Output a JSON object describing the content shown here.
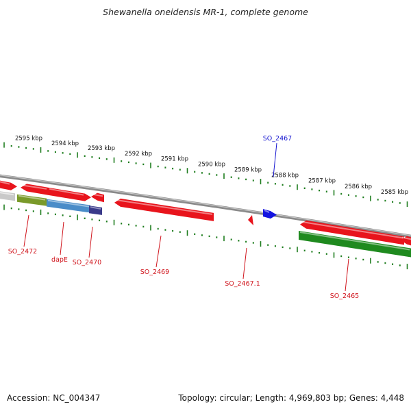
{
  "title": "Shewanella oneidensis MR-1, complete genome",
  "footer": {
    "accession": "Accession: NC_004347",
    "topology": "Topology: circular; Length: 4,969,803 bp; Genes: 4,448"
  },
  "colors": {
    "backbone": "#8a8a8a",
    "ticks": "#1e7d1e",
    "gene_red": "#e8141c",
    "gene_green": "#1f8a1f",
    "gene_blue": "#1414e0",
    "label_red": "#d0141c",
    "label_blue": "#1414d0"
  },
  "scale_labels": [
    "2595 kbp",
    "2594 kbp",
    "2593 kbp",
    "2592 kbp",
    "2591 kbp",
    "2590 kbp",
    "2589 kbp",
    "2588 kbp",
    "2587 kbp",
    "2586 kbp",
    "2585 kbp"
  ],
  "gene_labels": [
    {
      "id": "SO_2472",
      "color": "red"
    },
    {
      "id": "dapE",
      "color": "red"
    },
    {
      "id": "SO_2470",
      "color": "red"
    },
    {
      "id": "SO_2469",
      "color": "red"
    },
    {
      "id": "SO_2467",
      "color": "blue"
    },
    {
      "id": "SO_2467.1",
      "color": "red"
    },
    {
      "id": "SO_2465",
      "color": "red"
    }
  ]
}
